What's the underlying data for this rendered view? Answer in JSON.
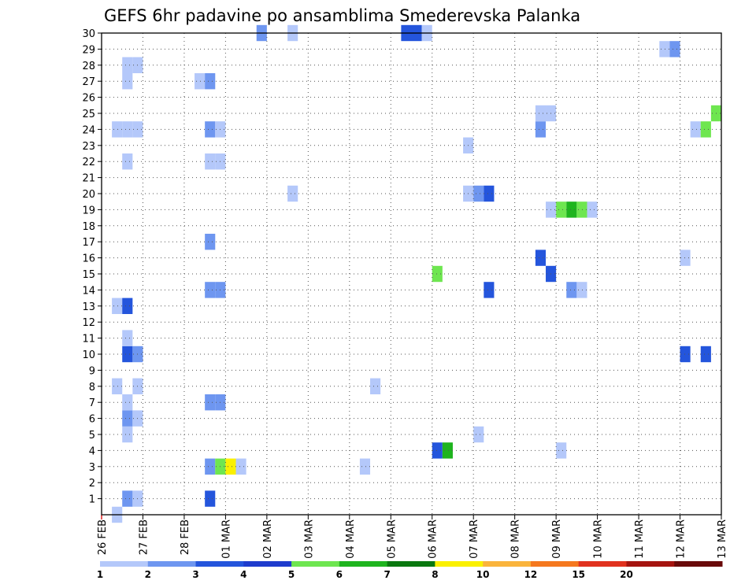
{
  "chart_data": {
    "type": "heatmap",
    "title": "GEFS 6hr padavine po ansamblima Smederevska Palanka",
    "xlabel": "",
    "ylabel": "",
    "x_tick_labels": [
      "26 FEB",
      "27 FEB",
      "28 FEB",
      "01 MAR",
      "02 MAR",
      "03 MAR",
      "04 MAR",
      "05 MAR",
      "06 MAR",
      "07 MAR",
      "08 MAR",
      "09 MAR",
      "10 MAR",
      "11 MAR",
      "12 MAR",
      "13 MAR"
    ],
    "x_range_days_from_26feb": [
      0,
      15
    ],
    "y_tick_labels": [
      "1",
      "2",
      "3",
      "4",
      "5",
      "6",
      "7",
      "8",
      "9",
      "10",
      "11",
      "12",
      "13",
      "14",
      "15",
      "16",
      "17",
      "18",
      "19",
      "20",
      "21",
      "22",
      "23",
      "24",
      "25",
      "26",
      "27",
      "28",
      "29",
      "30"
    ],
    "ylim": [
      0,
      30
    ],
    "grid": true,
    "colorbar": {
      "position": "bottom",
      "labels": [
        "1",
        "2",
        "3",
        "4",
        "5",
        "6",
        "7",
        "8",
        "10",
        "12",
        "15",
        "20"
      ],
      "colors": [
        "#b4c8fa",
        "#6e96f0",
        "#2455dc",
        "#1e3ccd",
        "#6ee650",
        "#1eb41e",
        "#0a780f",
        "#faf000",
        "#fab43c",
        "#f5781e",
        "#e1321e",
        "#a5140f",
        "#690a0a"
      ]
    },
    "cells_note": "each cell: [member_row, 6h_step_index_from_26FEB_00Z, color_class]; color_class: 0=1-2,1=2-3,2=3-4,3=4-5,4=5-6,5=6-7,6=7-8,7=8-10",
    "cells": [
      [
        0,
        1,
        0
      ],
      [
        1,
        2,
        1
      ],
      [
        1,
        3,
        0
      ],
      [
        1,
        10,
        2
      ],
      [
        3,
        10,
        1
      ],
      [
        3,
        11,
        4
      ],
      [
        3,
        12,
        7
      ],
      [
        3,
        13,
        0
      ],
      [
        3,
        25,
        0
      ],
      [
        4,
        32,
        2
      ],
      [
        4,
        33,
        5
      ],
      [
        4,
        44,
        0
      ],
      [
        5,
        2,
        0
      ],
      [
        5,
        36,
        0
      ],
      [
        6,
        2,
        1
      ],
      [
        6,
        3,
        0
      ],
      [
        7,
        2,
        0
      ],
      [
        7,
        10,
        1
      ],
      [
        7,
        11,
        1
      ],
      [
        8,
        1,
        0
      ],
      [
        8,
        3,
        0
      ],
      [
        8,
        26,
        0
      ],
      [
        10,
        2,
        2
      ],
      [
        10,
        3,
        1
      ],
      [
        10,
        56,
        2
      ],
      [
        10,
        58,
        2
      ],
      [
        11,
        2,
        0
      ],
      [
        13,
        1,
        0
      ],
      [
        13,
        2,
        2
      ],
      [
        14,
        10,
        1
      ],
      [
        14,
        11,
        1
      ],
      [
        14,
        37,
        2
      ],
      [
        14,
        45,
        1
      ],
      [
        14,
        46,
        0
      ],
      [
        15,
        32,
        4
      ],
      [
        15,
        43,
        2
      ],
      [
        16,
        56,
        0
      ],
      [
        16,
        42,
        2
      ],
      [
        17,
        10,
        1
      ],
      [
        19,
        43,
        0
      ],
      [
        19,
        44,
        4
      ],
      [
        19,
        45,
        5
      ],
      [
        19,
        46,
        4
      ],
      [
        19,
        47,
        0
      ],
      [
        20,
        18,
        0
      ],
      [
        20,
        35,
        0
      ],
      [
        20,
        36,
        1
      ],
      [
        20,
        37,
        2
      ],
      [
        22,
        2,
        0
      ],
      [
        22,
        10,
        0
      ],
      [
        22,
        11,
        0
      ],
      [
        23,
        35,
        0
      ],
      [
        24,
        1,
        0
      ],
      [
        24,
        2,
        0
      ],
      [
        24,
        3,
        0
      ],
      [
        24,
        10,
        1
      ],
      [
        24,
        11,
        0
      ],
      [
        24,
        42,
        1
      ],
      [
        24,
        57,
        0
      ],
      [
        24,
        58,
        4
      ],
      [
        25,
        42,
        0
      ],
      [
        25,
        43,
        0
      ],
      [
        25,
        59,
        4
      ],
      [
        27,
        2,
        0
      ],
      [
        27,
        9,
        0
      ],
      [
        27,
        10,
        1
      ],
      [
        28,
        2,
        0
      ],
      [
        28,
        3,
        0
      ],
      [
        29,
        54,
        0
      ],
      [
        29,
        55,
        1
      ],
      [
        30,
        15,
        1
      ],
      [
        30,
        18,
        0
      ],
      [
        30,
        29,
        2
      ],
      [
        30,
        30,
        2
      ],
      [
        30,
        31,
        0
      ]
    ]
  }
}
